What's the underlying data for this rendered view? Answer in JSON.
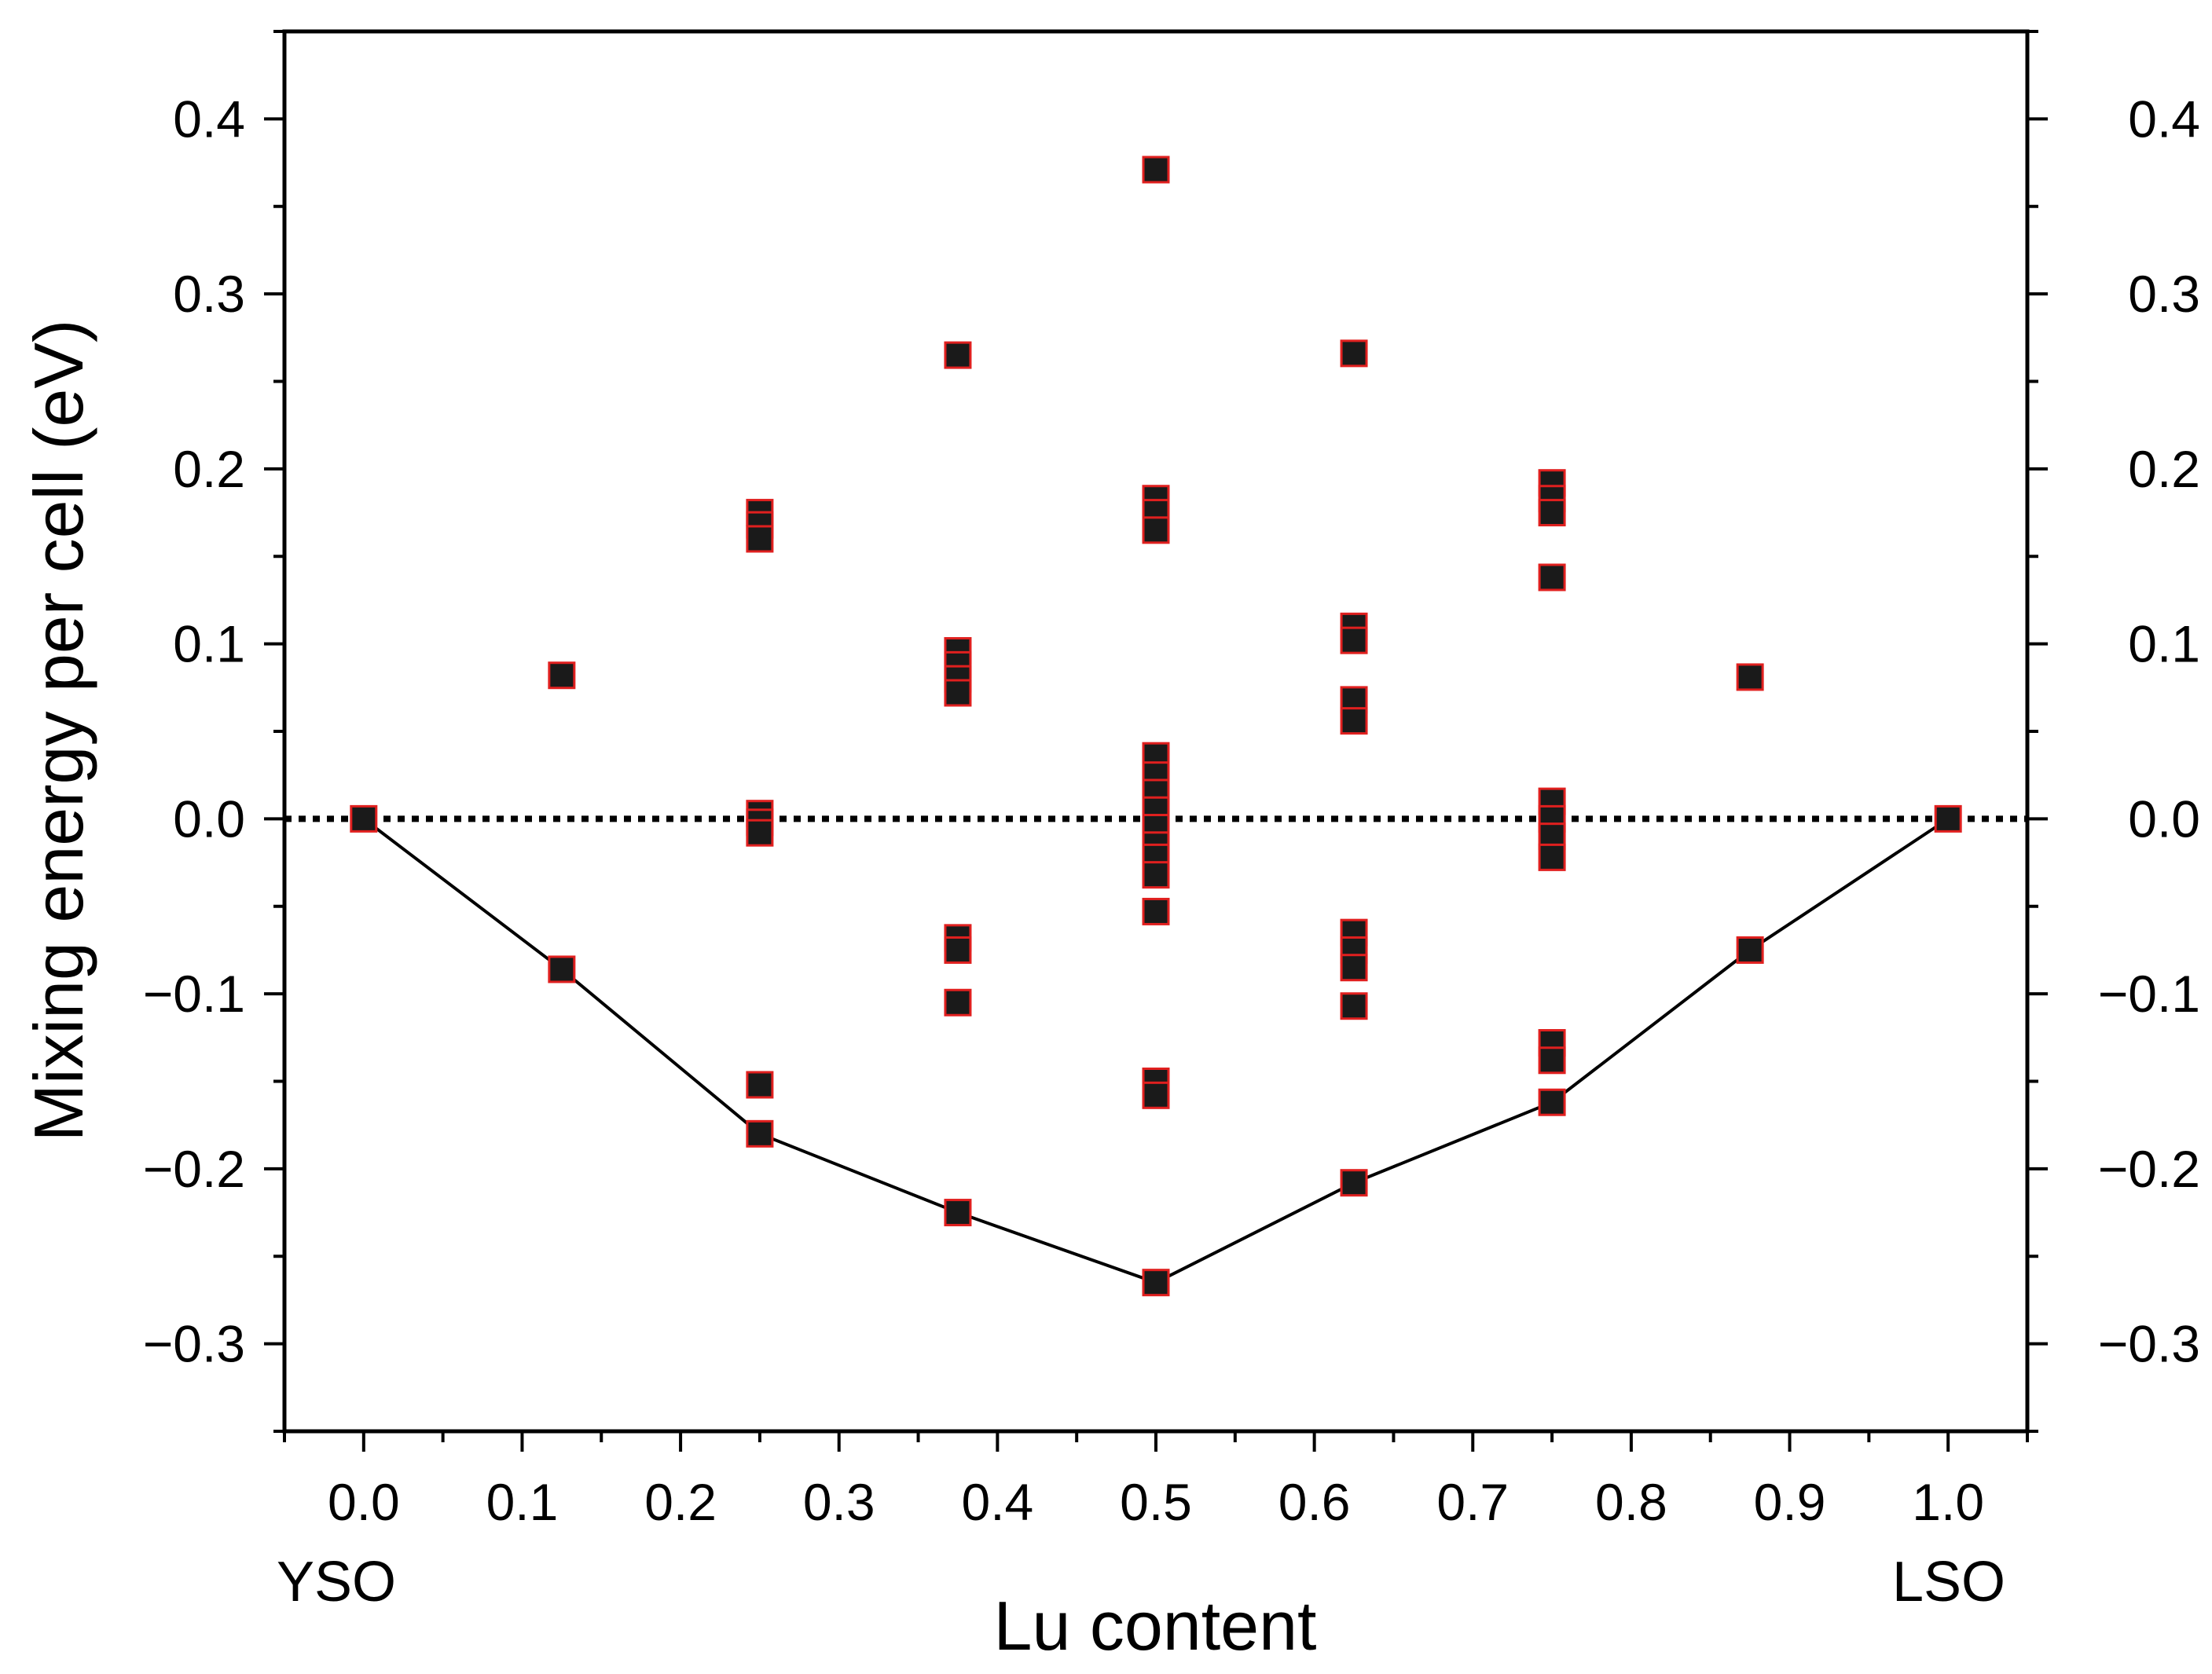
{
  "chart_data": {
    "type": "scatter",
    "xlabel": "Lu content",
    "ylabel": "Mixing energy per cell (eV)",
    "xlim": [
      -0.05,
      1.05
    ],
    "ylim": [
      -0.35,
      0.45
    ],
    "x_ticks": [
      "0.0",
      "0.1",
      "0.2",
      "0.3",
      "0.4",
      "0.5",
      "0.6",
      "0.7",
      "0.8",
      "0.9",
      "1.0"
    ],
    "y_ticks": [
      "−0.3",
      "−0.2",
      "−0.1",
      "0.0",
      "0.1",
      "0.2",
      "0.3",
      "0.4"
    ],
    "end_labels": {
      "left": "YSO",
      "right": "LSO"
    },
    "grid": false,
    "reference_line": {
      "y": 0.0,
      "style": "dotted"
    },
    "marker": {
      "shape": "square",
      "fill": "#1a1a1a",
      "edge": "#e0201f"
    },
    "line_color": "#000000",
    "series": [
      {
        "points": [
          [
            0.0,
            0.0
          ],
          [
            0.125,
            0.082
          ],
          [
            0.125,
            -0.086
          ],
          [
            0.25,
            0.175
          ],
          [
            0.25,
            0.168
          ],
          [
            0.25,
            0.16
          ],
          [
            0.25,
            0.003
          ],
          [
            0.25,
            -0.002
          ],
          [
            0.25,
            -0.008
          ],
          [
            0.25,
            -0.152
          ],
          [
            0.25,
            -0.18
          ],
          [
            0.375,
            0.265
          ],
          [
            0.375,
            0.096
          ],
          [
            0.375,
            0.088
          ],
          [
            0.375,
            0.08
          ],
          [
            0.375,
            0.072
          ],
          [
            0.375,
            -0.068
          ],
          [
            0.375,
            -0.075
          ],
          [
            0.375,
            -0.105
          ],
          [
            0.375,
            -0.225
          ],
          [
            0.5,
            0.371
          ],
          [
            0.5,
            0.183
          ],
          [
            0.5,
            0.175
          ],
          [
            0.5,
            0.165
          ],
          [
            0.5,
            0.036
          ],
          [
            0.5,
            0.025
          ],
          [
            0.5,
            0.015
          ],
          [
            0.5,
            0.005
          ],
          [
            0.5,
            -0.005
          ],
          [
            0.5,
            -0.015
          ],
          [
            0.5,
            -0.022
          ],
          [
            0.5,
            -0.032
          ],
          [
            0.5,
            -0.053
          ],
          [
            0.5,
            -0.15
          ],
          [
            0.5,
            -0.158
          ],
          [
            0.5,
            -0.265
          ],
          [
            0.625,
            0.266
          ],
          [
            0.625,
            0.11
          ],
          [
            0.625,
            0.102
          ],
          [
            0.625,
            0.068
          ],
          [
            0.625,
            0.056
          ],
          [
            0.625,
            -0.065
          ],
          [
            0.625,
            -0.075
          ],
          [
            0.625,
            -0.085
          ],
          [
            0.625,
            -0.107
          ],
          [
            0.625,
            -0.208
          ],
          [
            0.75,
            0.192
          ],
          [
            0.75,
            0.183
          ],
          [
            0.75,
            0.175
          ],
          [
            0.75,
            0.138
          ],
          [
            0.75,
            0.01
          ],
          [
            0.75,
            0.0
          ],
          [
            0.75,
            -0.01
          ],
          [
            0.75,
            -0.022
          ],
          [
            0.75,
            -0.128
          ],
          [
            0.75,
            -0.138
          ],
          [
            0.75,
            -0.162
          ],
          [
            0.875,
            0.081
          ],
          [
            0.875,
            -0.075
          ],
          [
            1.0,
            0.0
          ]
        ]
      },
      {
        "type": "line",
        "x": [
          0.0,
          0.125,
          0.25,
          0.375,
          0.5,
          0.625,
          0.75,
          0.875,
          1.0
        ],
        "y": [
          0.0,
          -0.086,
          -0.18,
          -0.225,
          -0.265,
          -0.208,
          -0.162,
          -0.075,
          0.0
        ]
      }
    ]
  }
}
